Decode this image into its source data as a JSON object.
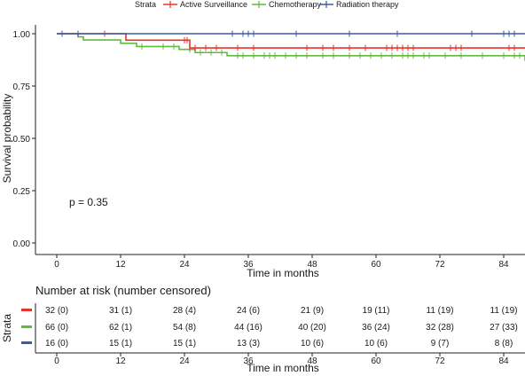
{
  "chart_data": [
    {
      "type": "line",
      "subtype": "kaplan-meier",
      "title": "",
      "xlabel": "Time in months",
      "ylabel": "Survival probability",
      "xlim": [
        0,
        88
      ],
      "ylim": [
        0,
        1
      ],
      "x_ticks": [
        0,
        12,
        24,
        36,
        48,
        60,
        72,
        84
      ],
      "y_ticks": [
        0.0,
        0.25,
        0.5,
        0.75,
        1.0
      ],
      "y_tick_labels": [
        "0.00",
        "0.25",
        "0.50",
        "0.75",
        "1.00"
      ],
      "legend": {
        "title": "Strata",
        "position": "top"
      },
      "annotation": "p = 0.35",
      "grid": false,
      "series": [
        {
          "name": "Active Surveillance",
          "color": "#e8352b",
          "steps": [
            [
              0,
              1.0
            ],
            [
              13,
              0.969
            ],
            [
              25,
              0.932
            ],
            [
              88,
              0.932
            ]
          ],
          "censor_times": [
            9,
            24,
            24.5,
            25,
            26,
            28,
            30,
            34,
            37,
            47,
            50,
            52,
            55,
            58,
            62,
            63,
            64,
            65,
            66,
            67,
            74,
            75,
            76,
            85,
            86
          ]
        },
        {
          "name": "Chemotherapy",
          "color": "#5fbc3b",
          "steps": [
            [
              0,
              1.0
            ],
            [
              4,
              0.985
            ],
            [
              5,
              0.97
            ],
            [
              12,
              0.954
            ],
            [
              15,
              0.939
            ],
            [
              23,
              0.925
            ],
            [
              26,
              0.91
            ],
            [
              28,
              0.91
            ],
            [
              32,
              0.895
            ],
            [
              88,
              0.895
            ],
            [
              88,
              0.87
            ]
          ],
          "censor_times": [
            16,
            20,
            22,
            25,
            27,
            29,
            31,
            34,
            35,
            37,
            39,
            40,
            41,
            43,
            45,
            47,
            50,
            52,
            55,
            57,
            59,
            61,
            63,
            65,
            66,
            67,
            69,
            70,
            73,
            76,
            80,
            84,
            86,
            87
          ]
        },
        {
          "name": "Radiation therapy",
          "color": "#3b5aa8",
          "steps": [
            [
              0,
              1.0
            ],
            [
              88,
              1.0
            ]
          ],
          "censor_times": [
            1,
            4,
            33,
            35,
            36,
            37,
            45,
            55,
            64,
            78,
            84,
            85,
            86
          ]
        }
      ]
    },
    {
      "type": "table",
      "title": "Number at risk (number censored)",
      "xlabel": "Time in months",
      "ylabel": "Strata",
      "x_ticks": [
        0,
        12,
        24,
        36,
        48,
        60,
        72,
        84
      ],
      "rows": [
        {
          "color": "#e8352b",
          "cells": [
            "32 (0)",
            "31 (1)",
            "28 (4)",
            "24 (6)",
            "21 (9)",
            "19 (11)",
            "11 (19)",
            "11 (19)"
          ]
        },
        {
          "color": "#5fbc3b",
          "cells": [
            "66 (0)",
            "62 (1)",
            "54 (8)",
            "44 (16)",
            "40 (20)",
            "36 (24)",
            "32 (28)",
            "27 (33)"
          ]
        },
        {
          "color": "#3b5aa8",
          "cells": [
            "16 (0)",
            "15 (1)",
            "15 (1)",
            "13 (3)",
            "10 (6)",
            "10 (6)",
            "9 (7)",
            "8 (8)"
          ]
        }
      ]
    }
  ]
}
